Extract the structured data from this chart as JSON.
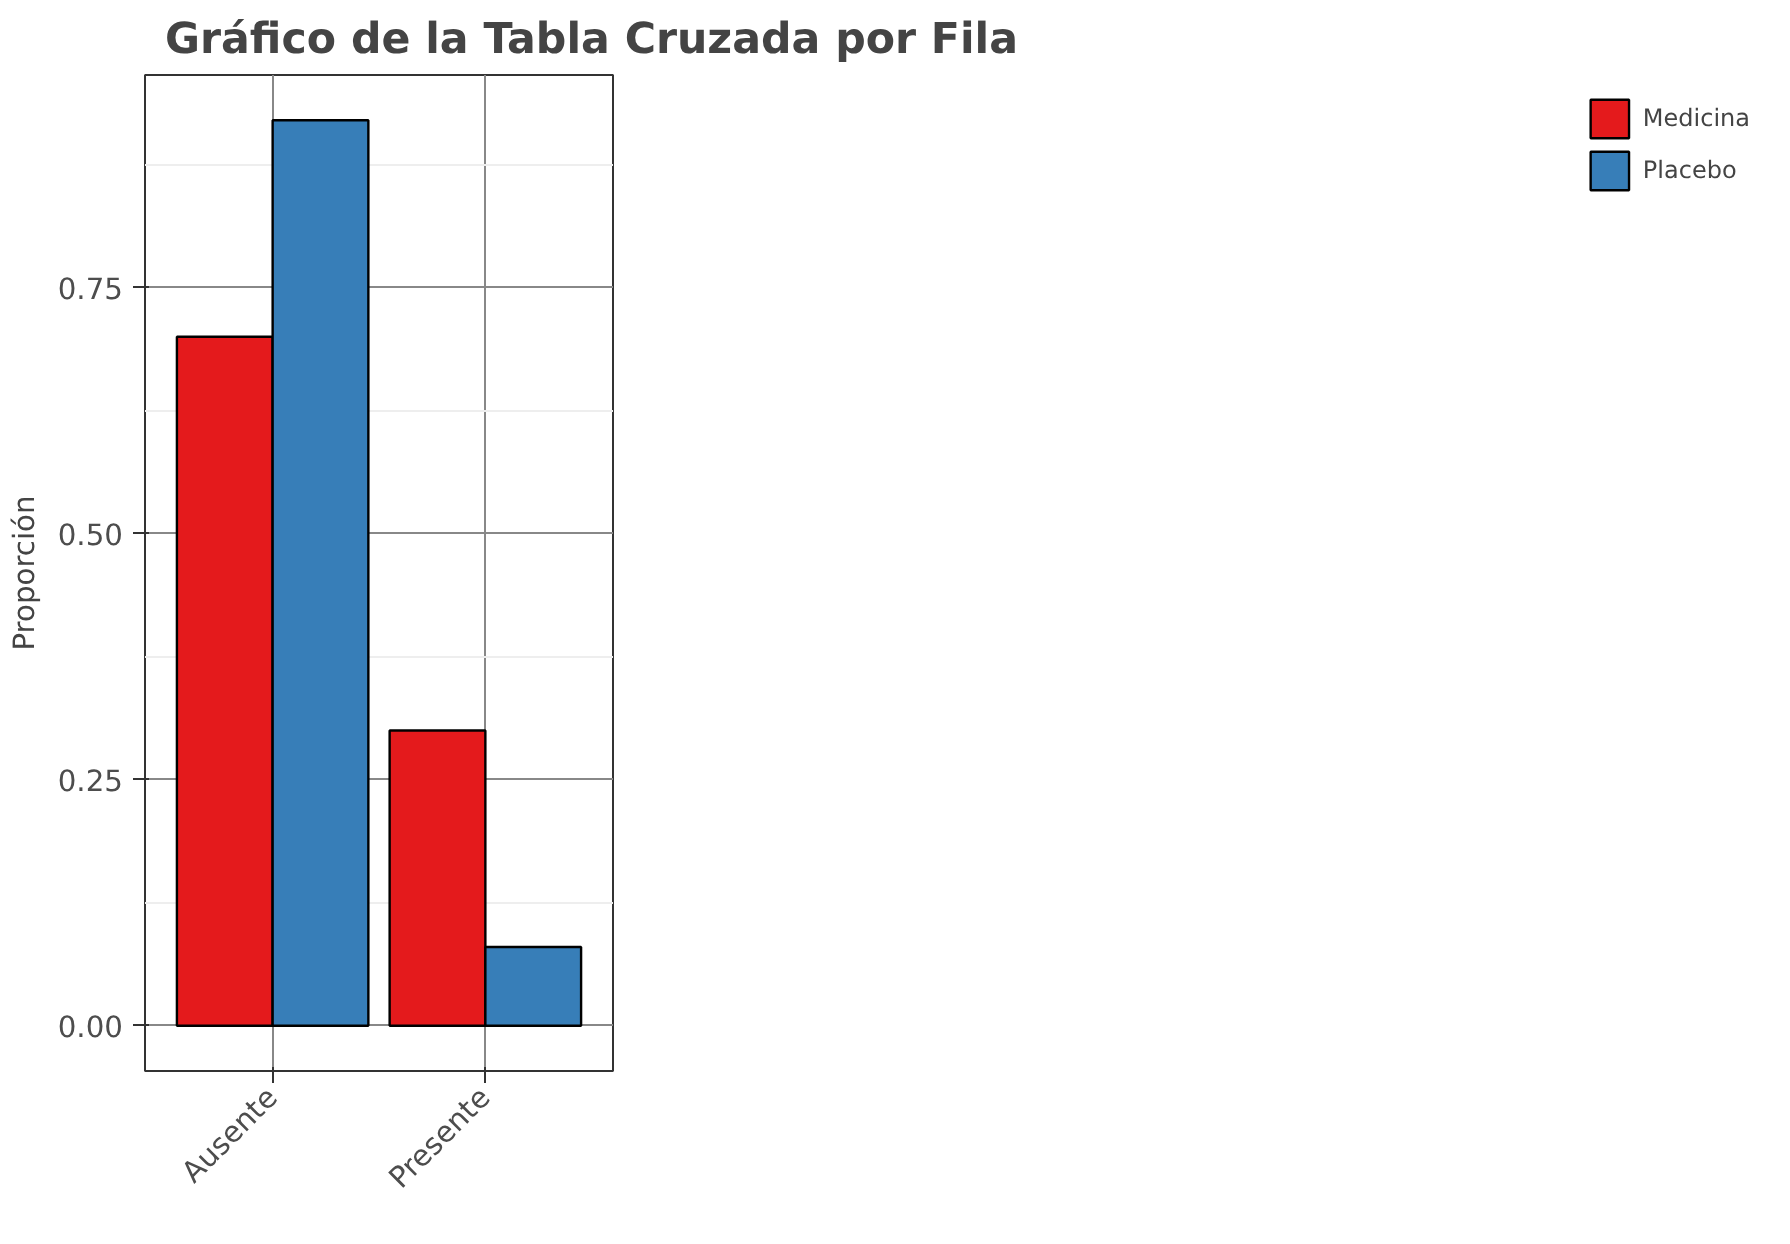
{
  "chart_data": {
    "type": "bar",
    "title": "Gráfico de la Tabla Cruzada por Fila",
    "ylabel": "Proporción",
    "categories": [
      "Ausente",
      "Presente"
    ],
    "series": [
      {
        "name": "Medicina",
        "color": "#e41a1c",
        "values": [
          0.7,
          0.3
        ]
      },
      {
        "name": "Placebo",
        "color": "#377eb8",
        "values": [
          0.92,
          0.08
        ]
      }
    ],
    "ylim": [
      -0.046,
      0.966
    ],
    "yticks": [
      {
        "value": 0,
        "label": "0.00"
      },
      {
        "value": 0.25,
        "label": "0.25"
      },
      {
        "value": 0.5,
        "label": "0.50"
      },
      {
        "value": 0.75,
        "label": "0.75"
      }
    ],
    "grid": true,
    "legend": "right"
  }
}
